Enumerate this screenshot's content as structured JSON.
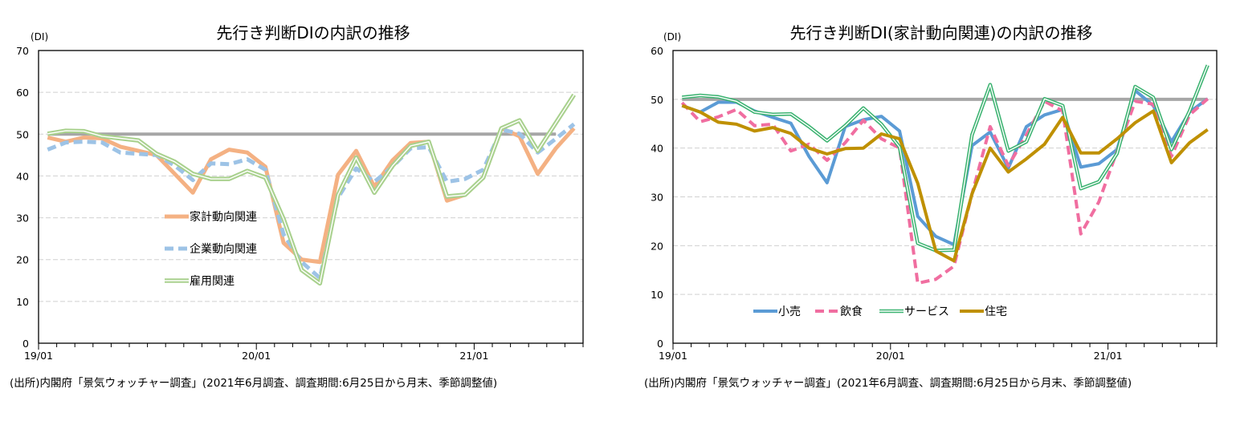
{
  "chart_data": [
    {
      "type": "line",
      "title": "先行き判断DIの内訳の推移",
      "ylabel": "(DI)",
      "ylim": [
        0,
        70
      ],
      "yticks": [
        0,
        10,
        20,
        30,
        40,
        50,
        60,
        70
      ],
      "x_tick_labels": [
        "19/01",
        "20/01",
        "21/01"
      ],
      "x": [
        "19/01",
        "19/02",
        "19/03",
        "19/04",
        "19/05",
        "19/06",
        "19/07",
        "19/08",
        "19/09",
        "19/10",
        "19/11",
        "19/12",
        "20/01",
        "20/02",
        "20/03",
        "20/04",
        "20/05",
        "20/06",
        "20/07",
        "20/08",
        "20/09",
        "20/10",
        "20/11",
        "20/12",
        "21/01",
        "21/02",
        "21/03",
        "21/04",
        "21/05",
        "21/06"
      ],
      "grid": true,
      "legend_placement": "center-left",
      "reference_line": {
        "value": 50,
        "from": "19/01",
        "to": "21/05",
        "color": "#A6A6A6"
      },
      "series": [
        {
          "name": "家計動向関連",
          "style": "solid",
          "color": "#F4B183",
          "values": [
            49.2,
            48.2,
            49.2,
            49.0,
            47.0,
            46.0,
            45.0,
            40.5,
            36.0,
            44.0,
            46.3,
            45.6,
            42.2,
            24.0,
            20.0,
            19.4,
            40.3,
            46.0,
            37.4,
            43.7,
            47.9,
            48.2,
            34.1,
            35.5,
            39.6,
            51.4,
            49.5,
            40.5,
            46.6,
            51.4
          ]
        },
        {
          "name": "企業動向関連",
          "style": "dashed",
          "color": "#9DC3E6",
          "values": [
            46.3,
            48.0,
            48.2,
            48.0,
            45.6,
            45.3,
            45.0,
            42.5,
            39.0,
            43.0,
            42.8,
            44.0,
            41.5,
            26.0,
            19.4,
            15.6,
            34.8,
            41.8,
            38.6,
            42.2,
            46.6,
            46.9,
            38.6,
            39.3,
            41.5,
            51.1,
            50.1,
            45.6,
            48.9,
            52.4
          ]
        },
        {
          "name": "雇用関連",
          "style": "double",
          "color": "#A9D18E",
          "values": [
            50.1,
            50.8,
            50.7,
            49.5,
            49.0,
            48.5,
            45.3,
            43.4,
            40.5,
            39.3,
            39.3,
            41.2,
            39.6,
            29.7,
            17.5,
            14.3,
            35.5,
            44.4,
            36.0,
            42.4,
            47.2,
            48.2,
            35.1,
            35.5,
            39.6,
            51.4,
            53.3,
            46.0,
            52.7,
            59.4
          ]
        }
      ],
      "source_note": "(出所)内閣府「景気ウォッチャー調査」(2021年6月調査、調査期間:6月25日から月末、季節調整値)"
    },
    {
      "type": "line",
      "title": "先行き判断DI(家計動向関連)の内訳の推移",
      "ylabel": "(DI)",
      "ylim": [
        0,
        60
      ],
      "yticks": [
        0,
        10,
        20,
        30,
        40,
        50,
        60
      ],
      "x_tick_labels": [
        "19/01",
        "20/01",
        "21/01"
      ],
      "x": [
        "19/01",
        "19/02",
        "19/03",
        "19/04",
        "19/05",
        "19/06",
        "19/07",
        "19/08",
        "19/09",
        "19/10",
        "19/11",
        "19/12",
        "20/01",
        "20/02",
        "20/03",
        "20/04",
        "20/05",
        "20/06",
        "20/07",
        "20/08",
        "20/09",
        "20/10",
        "20/11",
        "20/12",
        "21/01",
        "21/02",
        "21/03",
        "21/04",
        "21/05",
        "21/06"
      ],
      "grid": true,
      "legend_placement": "bottom",
      "reference_line": {
        "value": 50,
        "from": "19/01",
        "to": "21/06",
        "color": "#A6A6A6"
      },
      "series": [
        {
          "name": "小売",
          "style": "solid",
          "color": "#5B9BD5",
          "values": [
            48.7,
            47.4,
            49.4,
            49.4,
            47.6,
            46.3,
            45.1,
            38.3,
            32.9,
            44.4,
            45.8,
            46.5,
            43.5,
            26.0,
            21.9,
            20.2,
            40.5,
            43.3,
            35.9,
            44.4,
            46.8,
            47.9,
            36.1,
            36.8,
            39.7,
            51.8,
            48.7,
            41.3,
            47.4,
            50.1
          ]
        },
        {
          "name": "飲食",
          "style": "dashed",
          "color": "#F06EA0",
          "values": [
            49.3,
            45.4,
            46.4,
            47.9,
            44.6,
            44.9,
            39.4,
            40.8,
            37.5,
            41.1,
            45.7,
            41.9,
            40.0,
            12.3,
            13.1,
            15.8,
            30.6,
            44.4,
            36.4,
            42.7,
            49.6,
            47.6,
            22.4,
            29.0,
            39.4,
            49.6,
            49.0,
            38.3,
            46.8,
            50.1
          ]
        },
        {
          "name": "サービス",
          "style": "double",
          "color": "#3CB371",
          "values": [
            50.4,
            50.8,
            50.5,
            49.6,
            47.4,
            46.9,
            47.0,
            44.4,
            41.5,
            44.6,
            48.2,
            44.9,
            40.2,
            20.5,
            19.0,
            19.1,
            42.7,
            53.0,
            39.4,
            41.3,
            50.1,
            48.7,
            31.7,
            33.1,
            38.9,
            52.6,
            50.4,
            39.7,
            47.6,
            57.0
          ]
        },
        {
          "name": "住宅",
          "style": "solid",
          "color": "#BF9000",
          "values": [
            48.7,
            47.4,
            45.3,
            44.9,
            43.5,
            44.2,
            43.0,
            40.0,
            38.8,
            39.9,
            40.0,
            42.9,
            41.9,
            32.8,
            18.9,
            16.9,
            30.6,
            40.0,
            35.1,
            37.8,
            40.8,
            46.3,
            39.0,
            39.0,
            41.9,
            45.2,
            47.6,
            37.0,
            41.1,
            43.8
          ]
        }
      ],
      "source_note": "(出所)内閣府「景気ウォッチャー調査」(2021年6月調査、調査期間:6月25日から月末、季節調整値)"
    }
  ]
}
